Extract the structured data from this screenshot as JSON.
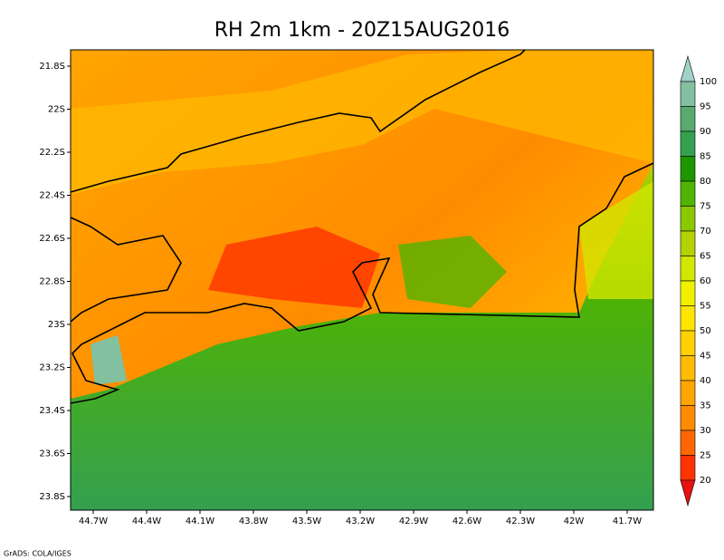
{
  "title": "RH 2m 1km - 20Z15AUG2016",
  "lat_labels": [
    "21.8S",
    "22S",
    "22.2S",
    "22.4S",
    "22.6S",
    "22.8S",
    "23S",
    "23.2S",
    "23.4S",
    "23.6S",
    "23.8S"
  ],
  "lon_labels": [
    "44.7W",
    "44.4W",
    "44.1W",
    "43.8W",
    "43.5W",
    "43.2W",
    "42.9W",
    "42.6W",
    "42.3W",
    "42W",
    "41.7W"
  ],
  "colorbar": {
    "labels": [
      "100",
      "95",
      "90",
      "85",
      "80",
      "75",
      "70",
      "65",
      "60",
      "55",
      "50",
      "45",
      "40",
      "35",
      "30",
      "25",
      "20"
    ],
    "colors": [
      "#a0d2c8",
      "#82c0a0",
      "#5aaa6e",
      "#34a050",
      "#1e9600",
      "#50b400",
      "#8cc800",
      "#b4d200",
      "#d2e600",
      "#f0f000",
      "#ffe600",
      "#ffd000",
      "#ffbb00",
      "#ffa500",
      "#ff8c00",
      "#ff6600",
      "#ff3300",
      "#e81010"
    ]
  },
  "credit": "GrADS: COLA/IGES"
}
